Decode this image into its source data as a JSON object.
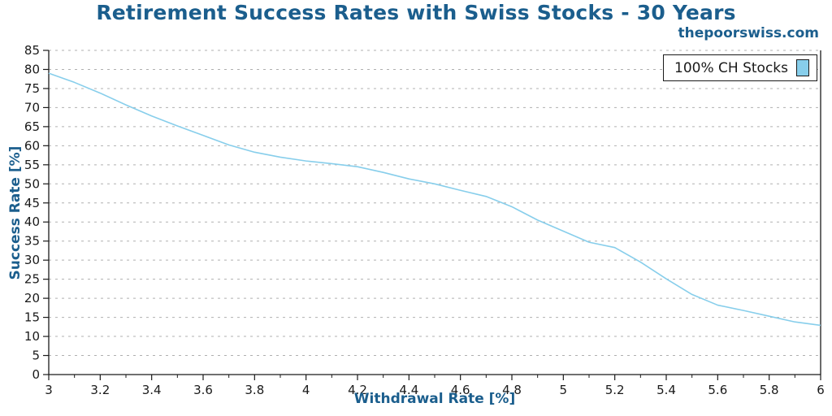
{
  "header": {
    "title": "Retirement Success Rates with Swiss Stocks - 30 Years",
    "watermark": "thepoorswiss.com"
  },
  "colors": {
    "title_blue": "#1b5e8d",
    "series_line": "#87ceeb",
    "grid": "#b0b0b0",
    "spine": "#1a1a1a",
    "tick_text": "#1a1a1a"
  },
  "chart_data": {
    "type": "line",
    "title": "Retirement Success Rates with Swiss Stocks - 30 Years",
    "xlabel": "Withdrawal Rate [%]",
    "ylabel": "Success Rate [%]",
    "xlim": [
      3,
      6
    ],
    "ylim": [
      0,
      85
    ],
    "xticks": [
      3,
      3.2,
      3.4,
      3.6,
      3.8,
      4,
      4.2,
      4.4,
      4.6,
      4.8,
      5,
      5.2,
      5.4,
      5.6,
      5.8,
      6
    ],
    "xtick_labels": [
      "3",
      "3.2",
      "3.4",
      "3.6",
      "3.8",
      "4",
      "4.2",
      "4.4",
      "4.6",
      "4.8",
      "5",
      "5.2",
      "5.4",
      "5.6",
      "5.8",
      "6"
    ],
    "x_minor_step": 0.1,
    "yticks": [
      0,
      5,
      10,
      15,
      20,
      25,
      30,
      35,
      40,
      45,
      50,
      55,
      60,
      65,
      70,
      75,
      80,
      85
    ],
    "grid": "horizontal-dashed",
    "legend": {
      "position": "top-right",
      "entries": [
        {
          "label": "100% CH Stocks",
          "color": "#87ceeb"
        }
      ]
    },
    "series": [
      {
        "name": "100% CH Stocks",
        "color": "#87ceeb",
        "x": [
          3.0,
          3.1,
          3.2,
          3.3,
          3.4,
          3.5,
          3.6,
          3.7,
          3.8,
          3.9,
          4.0,
          4.1,
          4.2,
          4.3,
          4.4,
          4.5,
          4.6,
          4.7,
          4.8,
          4.9,
          5.0,
          5.1,
          5.2,
          5.3,
          5.4,
          5.5,
          5.6,
          5.7,
          5.8,
          5.9,
          6.0
        ],
        "values": [
          79,
          76.6,
          73.8,
          70.7,
          67.8,
          65.2,
          62.7,
          60.2,
          58.3,
          57,
          56,
          55.3,
          54.5,
          53,
          51.3,
          50,
          48.3,
          46.7,
          44,
          40.5,
          37.6,
          34.7,
          33.3,
          29.5,
          25.1,
          21,
          18.2,
          16.8,
          15.3,
          13.8,
          12.9
        ]
      }
    ]
  }
}
